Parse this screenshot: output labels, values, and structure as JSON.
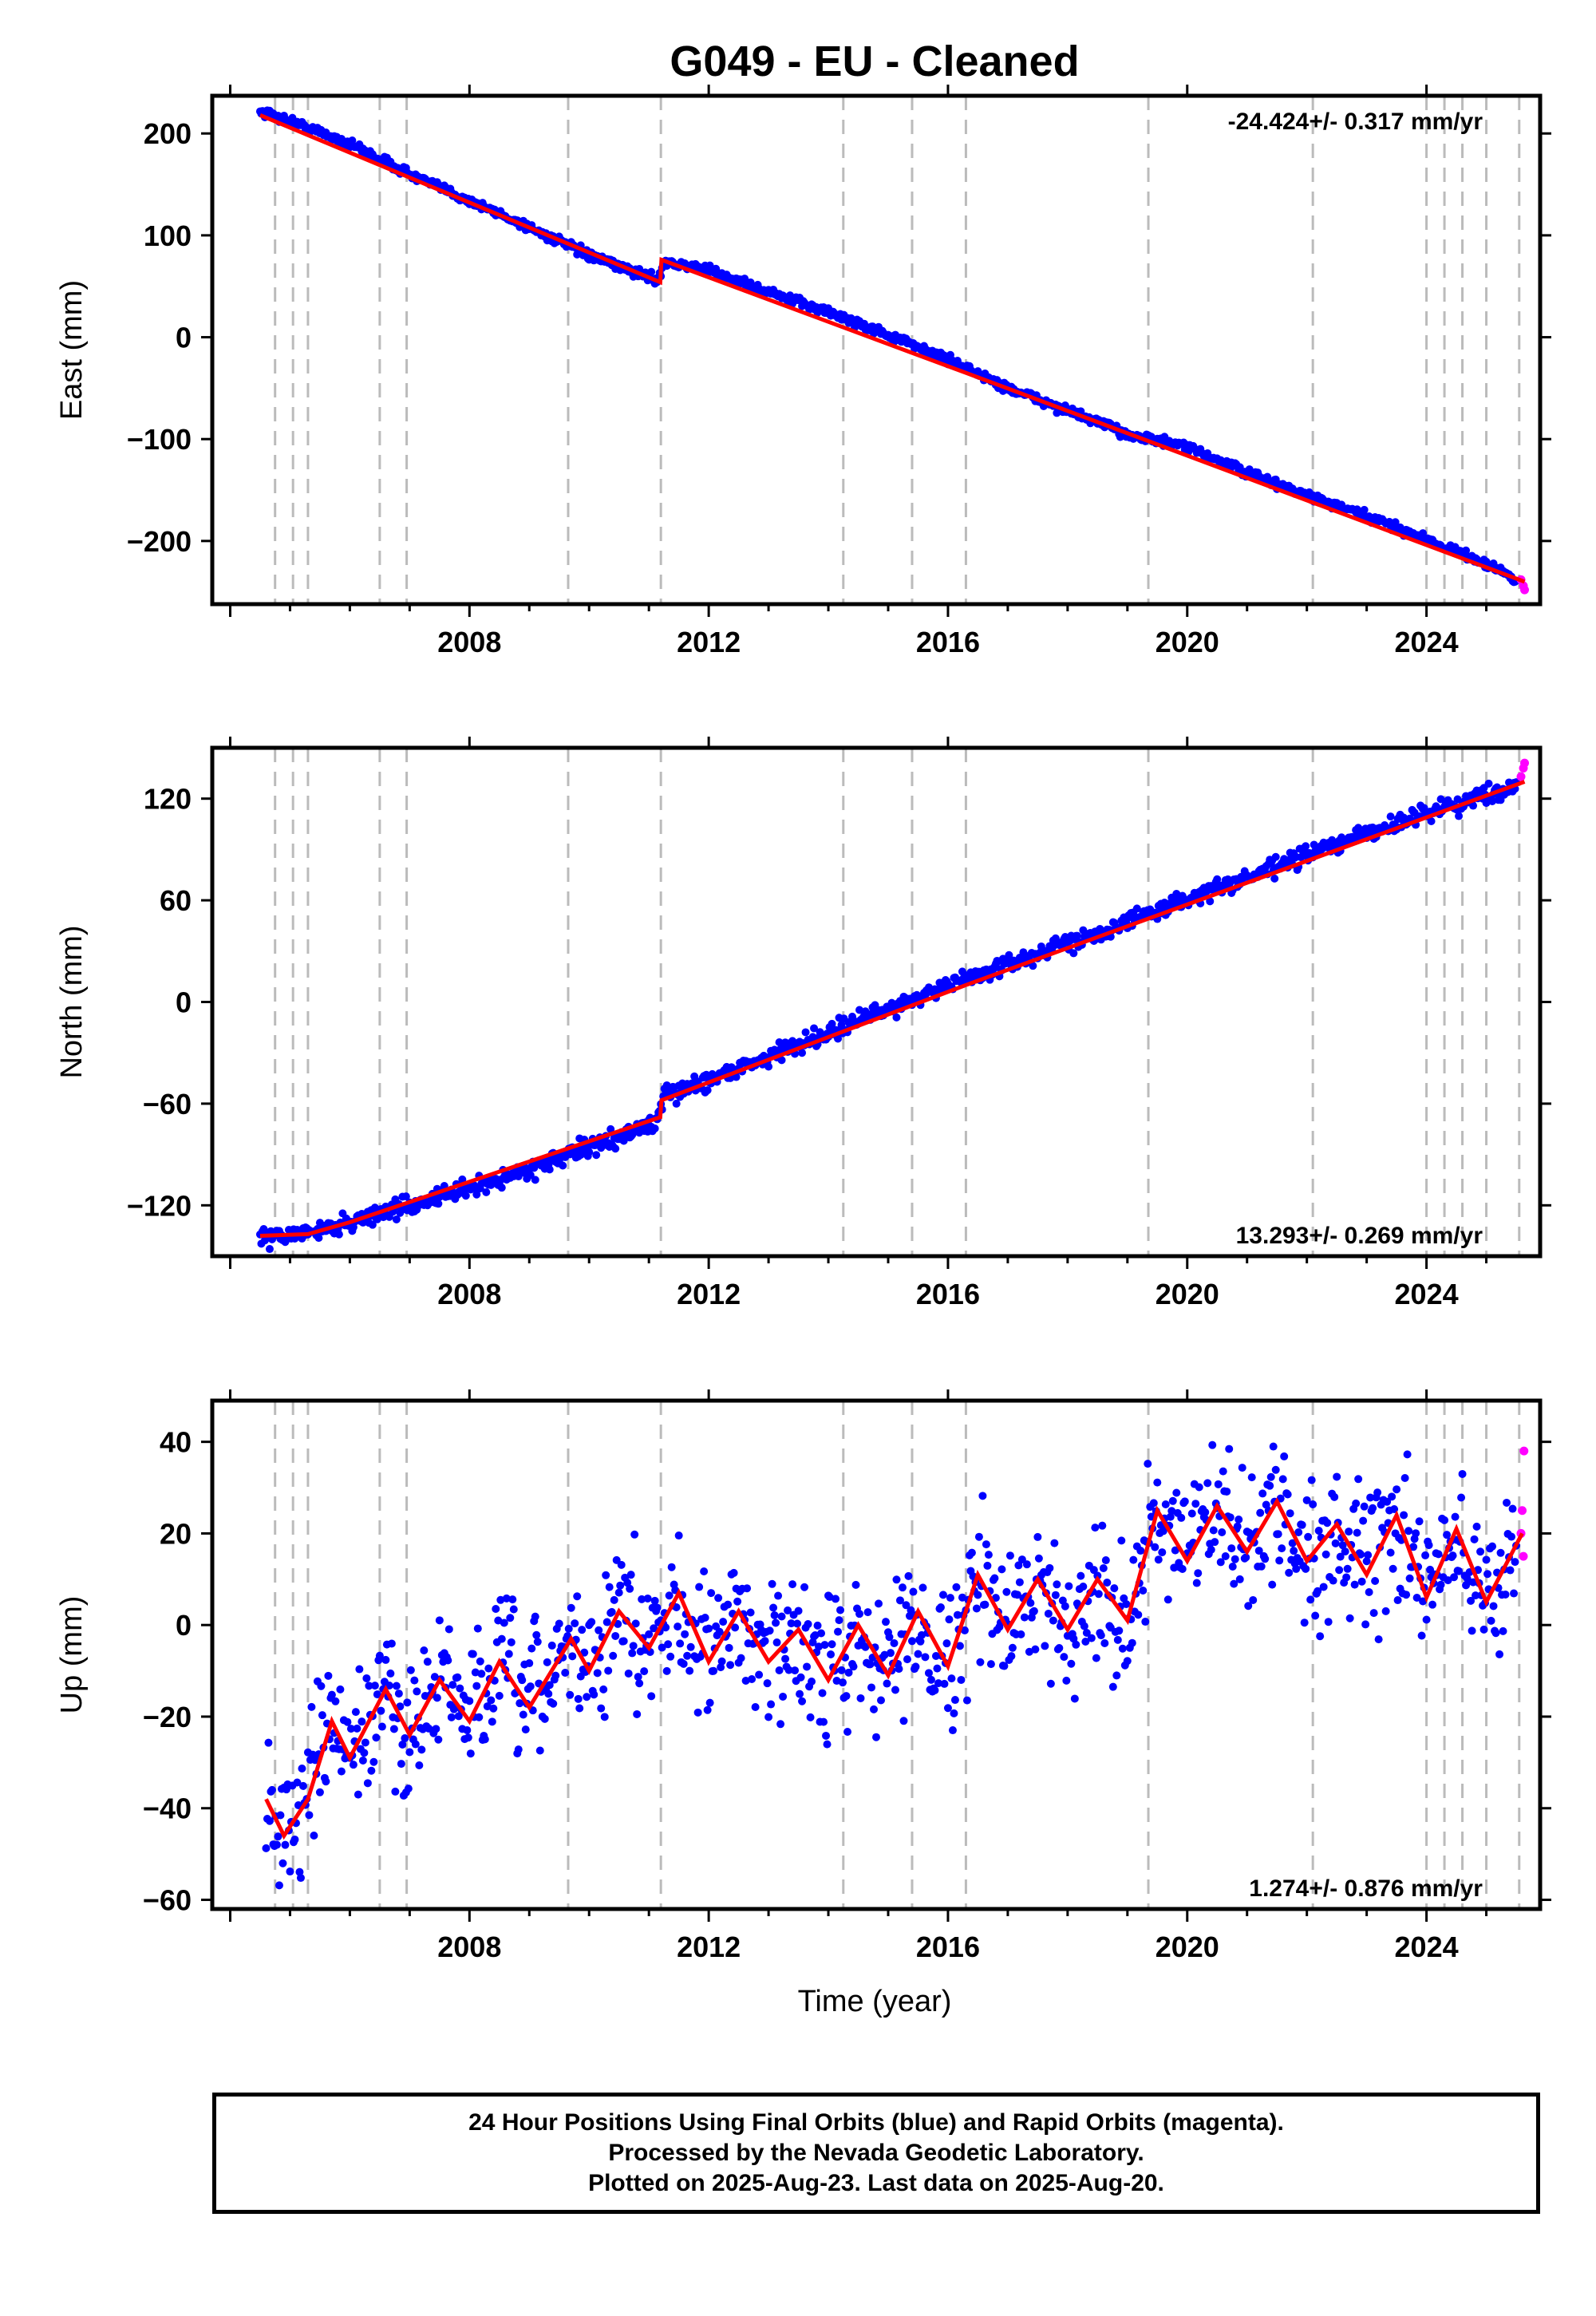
{
  "title": "G049  - EU - Cleaned",
  "colors": {
    "final": "#0000ff",
    "rapid": "#ff00ff",
    "model": "#ff0000",
    "steps": "#bbbbbb"
  },
  "x_ticks": [
    "2008",
    "2012",
    "2016",
    "2020",
    "2024"
  ],
  "xlabel": "Time (year)",
  "step_epochs": [
    2004.75,
    2005.05,
    2005.3,
    2006.5,
    2006.95,
    2009.65,
    2011.2,
    2014.25,
    2015.4,
    2016.3,
    2019.35,
    2022.1,
    2024.0,
    2024.3,
    2024.6,
    2025.0,
    2025.55
  ],
  "chart_data": [
    {
      "type": "scatter",
      "ylabel": "East (mm)",
      "rate": "-24.424+/- 0.317 mm/yr",
      "rate_position": "top-right",
      "xlim": [
        2003.7,
        2025.9
      ],
      "ylim": [
        -262,
        237
      ],
      "y_ticks": [
        -200,
        -100,
        0,
        100,
        200
      ],
      "y_tick_labels": [
        "−200",
        "−100",
        "0",
        "100",
        "200"
      ],
      "series": [
        {
          "name": "Final Orbits",
          "points": [
            [
              2004.5,
              222
            ],
            [
              2005.0,
              212
            ],
            [
              2006.0,
              190
            ],
            [
              2007.0,
              160
            ],
            [
              2008.0,
              134
            ],
            [
              2009.0,
              108
            ],
            [
              2010.0,
              80
            ],
            [
              2011.15,
              56
            ],
            [
              2011.25,
              74
            ],
            [
              2012.0,
              66
            ],
            [
              2013.0,
              44
            ],
            [
              2014.0,
              25
            ],
            [
              2015.0,
              2
            ],
            [
              2016.0,
              -22
            ],
            [
              2017.0,
              -50
            ],
            [
              2018.0,
              -72
            ],
            [
              2019.0,
              -95
            ],
            [
              2020.0,
              -108
            ],
            [
              2021.0,
              -133
            ],
            [
              2022.0,
              -155
            ],
            [
              2023.0,
              -176
            ],
            [
              2024.0,
              -198
            ],
            [
              2025.0,
              -222
            ],
            [
              2025.5,
              -238
            ]
          ]
        },
        {
          "name": "Rapid Orbits",
          "points": [
            [
              2025.58,
              -238
            ],
            [
              2025.62,
              -244
            ],
            [
              2025.64,
              -248
            ]
          ]
        }
      ],
      "model": [
        [
          2004.5,
          218
        ],
        [
          2011.19,
          54
        ],
        [
          2011.21,
          76
        ],
        [
          2016.3,
          -35
        ],
        [
          2025.64,
          -240
        ]
      ]
    },
    {
      "type": "scatter",
      "ylabel": "North (mm)",
      "rate": "13.293+/- 0.269 mm/yr",
      "rate_position": "bottom-right",
      "xlim": [
        2003.7,
        2025.9
      ],
      "ylim": [
        -150,
        150
      ],
      "y_ticks": [
        -120,
        -60,
        0,
        60,
        120
      ],
      "y_tick_labels": [
        "−120",
        "−60",
        "0",
        "60",
        "120"
      ],
      "series": [
        {
          "name": "Final Orbits",
          "points": [
            [
              2004.5,
              -140
            ],
            [
              2005.5,
              -135
            ],
            [
              2006.5,
              -125
            ],
            [
              2007.5,
              -115
            ],
            [
              2008.5,
              -105
            ],
            [
              2009.5,
              -92
            ],
            [
              2010.5,
              -80
            ],
            [
              2011.15,
              -70
            ],
            [
              2011.25,
              -56
            ],
            [
              2012.0,
              -46
            ],
            [
              2013.0,
              -32
            ],
            [
              2014.0,
              -18
            ],
            [
              2015.0,
              -4
            ],
            [
              2016.0,
              10
            ],
            [
              2017.0,
              22
            ],
            [
              2018.0,
              35
            ],
            [
              2019.0,
              47
            ],
            [
              2020.0,
              61
            ],
            [
              2021.0,
              73
            ],
            [
              2022.0,
              87
            ],
            [
              2023.0,
              99
            ],
            [
              2024.0,
              112
            ],
            [
              2025.0,
              122
            ],
            [
              2025.5,
              128
            ]
          ]
        },
        {
          "name": "Rapid Orbits",
          "points": [
            [
              2025.58,
              133
            ],
            [
              2025.62,
              138
            ],
            [
              2025.64,
              141
            ]
          ]
        }
      ],
      "model": [
        [
          2004.5,
          -138
        ],
        [
          2005.3,
          -137
        ],
        [
          2006.0,
          -130
        ],
        [
          2011.19,
          -68
        ],
        [
          2011.21,
          -58
        ],
        [
          2016.3,
          10
        ],
        [
          2025.64,
          130
        ]
      ]
    },
    {
      "type": "scatter",
      "ylabel": "Up (mm)",
      "rate": "1.274+/- 0.876 mm/yr",
      "rate_position": "bottom-right",
      "xlim": [
        2003.7,
        2025.9
      ],
      "ylim": [
        -62,
        49
      ],
      "y_ticks": [
        -60,
        -40,
        -20,
        0,
        20,
        40
      ],
      "y_tick_labels": [
        "−60",
        "−40",
        "−20",
        "0",
        "20",
        "40"
      ],
      "series": [
        {
          "name": "Final Orbits",
          "points": [
            [
              2004.6,
              -38
            ],
            [
              2004.9,
              -46
            ],
            [
              2005.3,
              -37
            ],
            [
              2005.7,
              -21
            ],
            [
              2006.0,
              -29
            ],
            [
              2006.6,
              -15
            ],
            [
              2007.0,
              -24
            ],
            [
              2007.5,
              -12
            ],
            [
              2008.0,
              -20
            ],
            [
              2008.5,
              -8
            ],
            [
              2009.0,
              -18
            ],
            [
              2009.7,
              -3
            ],
            [
              2010.0,
              -10
            ],
            [
              2010.5,
              3
            ],
            [
              2011.0,
              -5
            ],
            [
              2011.5,
              6
            ],
            [
              2012.0,
              -8
            ],
            [
              2012.5,
              3
            ],
            [
              2013.0,
              -8
            ],
            [
              2013.5,
              -1
            ],
            [
              2014.0,
              -12
            ],
            [
              2014.5,
              0
            ],
            [
              2015.0,
              -11
            ],
            [
              2015.5,
              3
            ],
            [
              2016.0,
              -9
            ],
            [
              2016.5,
              10
            ],
            [
              2017.0,
              -1
            ],
            [
              2017.5,
              9
            ],
            [
              2018.0,
              -1
            ],
            [
              2018.5,
              9
            ],
            [
              2019.0,
              1
            ],
            [
              2019.5,
              24
            ],
            [
              2020.0,
              14
            ],
            [
              2020.5,
              25
            ],
            [
              2021.0,
              16
            ],
            [
              2021.5,
              26
            ],
            [
              2022.0,
              14
            ],
            [
              2022.5,
              21
            ],
            [
              2023.0,
              11
            ],
            [
              2023.5,
              23
            ],
            [
              2024.0,
              6
            ],
            [
              2024.5,
              20
            ],
            [
              2025.0,
              5
            ],
            [
              2025.5,
              18
            ]
          ]
        },
        {
          "name": "Rapid Orbits",
          "points": [
            [
              2025.58,
              20
            ],
            [
              2025.6,
              25
            ],
            [
              2025.62,
              15
            ],
            [
              2025.63,
              38
            ]
          ]
        }
      ],
      "model": [
        [
          2004.6,
          -38
        ],
        [
          2004.9,
          -46
        ],
        [
          2005.3,
          -38
        ],
        [
          2005.7,
          -21
        ],
        [
          2006.0,
          -29
        ],
        [
          2006.6,
          -14
        ],
        [
          2007.0,
          -24
        ],
        [
          2007.5,
          -12
        ],
        [
          2008.0,
          -21
        ],
        [
          2008.5,
          -8
        ],
        [
          2009.0,
          -18
        ],
        [
          2009.7,
          -3
        ],
        [
          2010.0,
          -10
        ],
        [
          2010.5,
          3
        ],
        [
          2011.0,
          -5
        ],
        [
          2011.5,
          7
        ],
        [
          2012.0,
          -8
        ],
        [
          2012.5,
          3
        ],
        [
          2013.0,
          -8
        ],
        [
          2013.5,
          -1
        ],
        [
          2014.0,
          -12
        ],
        [
          2014.5,
          0
        ],
        [
          2015.0,
          -11
        ],
        [
          2015.5,
          3
        ],
        [
          2016.0,
          -9
        ],
        [
          2016.5,
          11
        ],
        [
          2017.0,
          -1
        ],
        [
          2017.5,
          10
        ],
        [
          2018.0,
          -1
        ],
        [
          2018.5,
          10
        ],
        [
          2019.0,
          1
        ],
        [
          2019.5,
          25
        ],
        [
          2020.0,
          14
        ],
        [
          2020.5,
          26
        ],
        [
          2021.0,
          16
        ],
        [
          2021.5,
          27
        ],
        [
          2022.0,
          14
        ],
        [
          2022.5,
          22
        ],
        [
          2023.0,
          11
        ],
        [
          2023.5,
          24
        ],
        [
          2024.0,
          6
        ],
        [
          2024.5,
          21
        ],
        [
          2025.0,
          5
        ],
        [
          2025.6,
          20
        ]
      ]
    }
  ],
  "footer": {
    "line1": "24 Hour Positions Using Final Orbits (blue) and Rapid Orbits (magenta).",
    "line2": "Processed by the Nevada Geodetic Laboratory.",
    "line3": "Plotted on 2025-Aug-23. Last data on 2025-Aug-20."
  }
}
